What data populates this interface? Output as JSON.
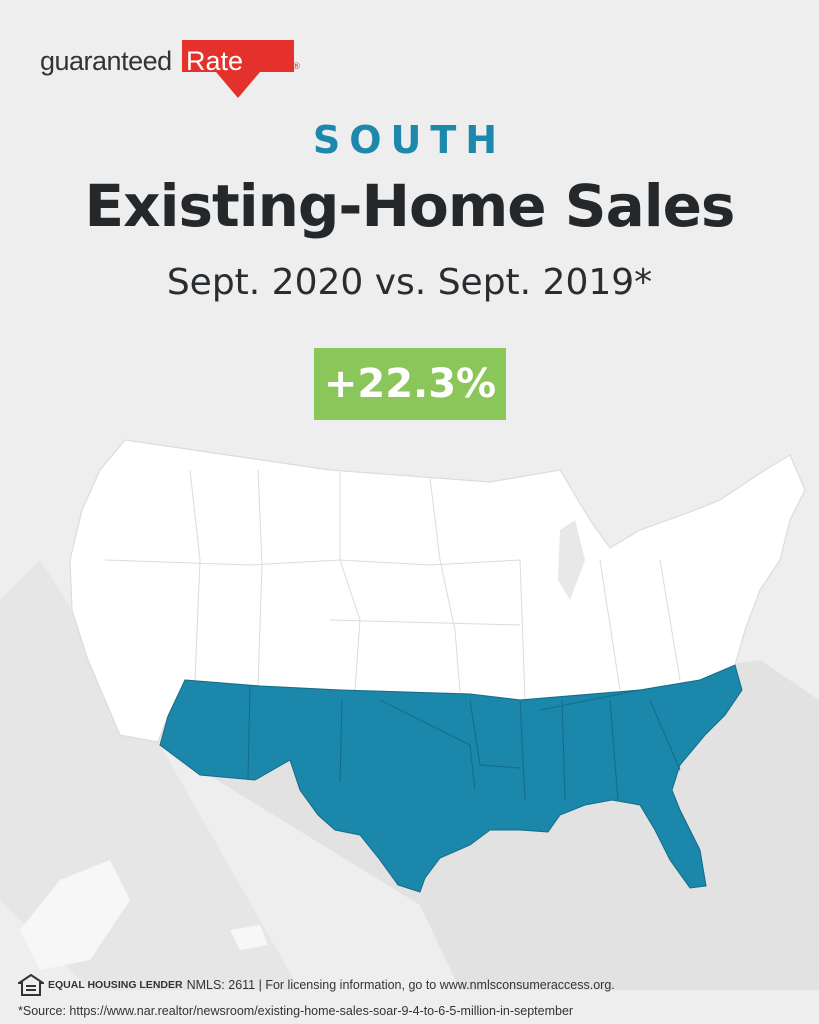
{
  "brand": {
    "logo_word": "guaranteed",
    "logo_rate": "Rate",
    "logo_mark": "®"
  },
  "header": {
    "region": "SOUTH",
    "title": "Existing-Home Sales",
    "subtitle": "Sept. 2020 vs. Sept. 2019*"
  },
  "stat": {
    "value": "+22.3%"
  },
  "map": {
    "highlighted_region": "South",
    "highlight_color": "#1a87ab",
    "other_color": "#ffffff"
  },
  "footer": {
    "ehl_label": "EQUAL HOUSING LENDER",
    "license": "NMLS: 2611 | For licensing information, go to www.nmlsconsumeraccess.org.",
    "source": "*Source: https://www.nar.realtor/newsroom/existing-home-sales-soar-9-4-to-6-5-million-in-september"
  },
  "colors": {
    "background": "#eeeeee",
    "accent": "#1e88ac",
    "badge": "#8bc65a",
    "brand_red": "#e4312b"
  }
}
